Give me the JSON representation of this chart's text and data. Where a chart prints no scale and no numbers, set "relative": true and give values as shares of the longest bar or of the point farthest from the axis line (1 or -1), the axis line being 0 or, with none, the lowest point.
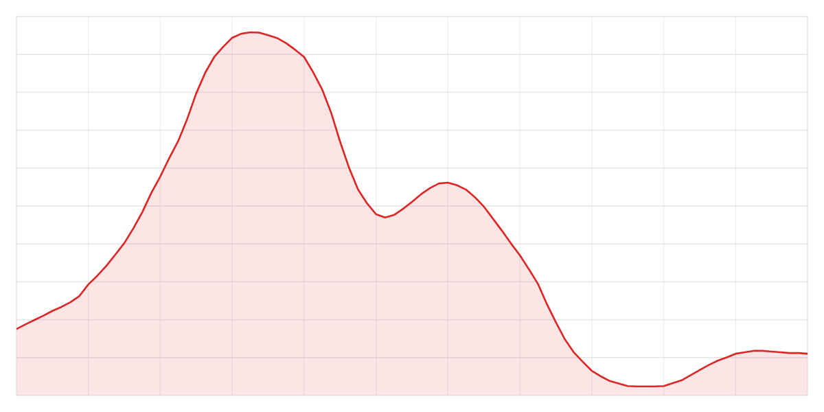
{
  "chart_data": {
    "type": "area",
    "relative": true,
    "grid": true,
    "tick_labels": false,
    "categories": [
      null,
      null,
      null,
      null,
      null,
      null,
      null,
      null,
      null,
      null,
      null,
      null,
      null,
      null,
      null,
      null,
      null,
      null,
      null,
      null,
      null,
      null,
      null,
      null,
      null,
      null,
      null,
      null,
      null,
      null,
      null,
      null,
      null,
      null,
      null,
      null,
      null,
      null,
      null,
      null,
      null,
      null,
      null,
      null,
      null,
      null,
      null,
      null,
      null,
      null,
      null,
      null,
      null,
      null,
      null,
      null,
      null,
      null,
      null,
      null,
      null,
      null,
      null,
      null,
      null,
      null,
      null,
      null,
      null,
      null,
      null,
      null,
      null,
      null,
      null,
      null,
      null,
      null,
      null,
      null,
      null,
      null,
      null,
      null,
      null,
      null,
      null,
      null,
      null
    ],
    "series": [
      {
        "color": "#dc2626",
        "values": [
          0.183,
          0.196,
          0.208,
          0.22,
          0.233,
          0.244,
          0.257,
          0.274,
          0.306,
          0.33,
          0.357,
          0.388,
          0.42,
          0.46,
          0.505,
          0.558,
          0.603,
          0.654,
          0.701,
          0.762,
          0.832,
          0.889,
          0.932,
          0.96,
          0.985,
          0.996,
          1.0,
          0.999,
          0.992,
          0.984,
          0.97,
          0.952,
          0.932,
          0.89,
          0.843,
          0.779,
          0.699,
          0.627,
          0.567,
          0.529,
          0.499,
          0.49,
          0.497,
          0.514,
          0.533,
          0.554,
          0.571,
          0.584,
          0.586,
          0.579,
          0.567,
          0.546,
          0.52,
          0.487,
          0.454,
          0.419,
          0.386,
          0.348,
          0.308,
          0.252,
          0.202,
          0.155,
          0.119,
          0.093,
          0.068,
          0.053,
          0.04,
          0.033,
          0.026,
          0.025,
          0.025,
          0.025,
          0.026,
          0.034,
          0.042,
          0.056,
          0.07,
          0.084,
          0.096,
          0.105,
          0.115,
          0.119,
          0.123,
          0.123,
          0.121,
          0.119,
          0.117,
          0.117,
          0.115
        ]
      }
    ]
  }
}
